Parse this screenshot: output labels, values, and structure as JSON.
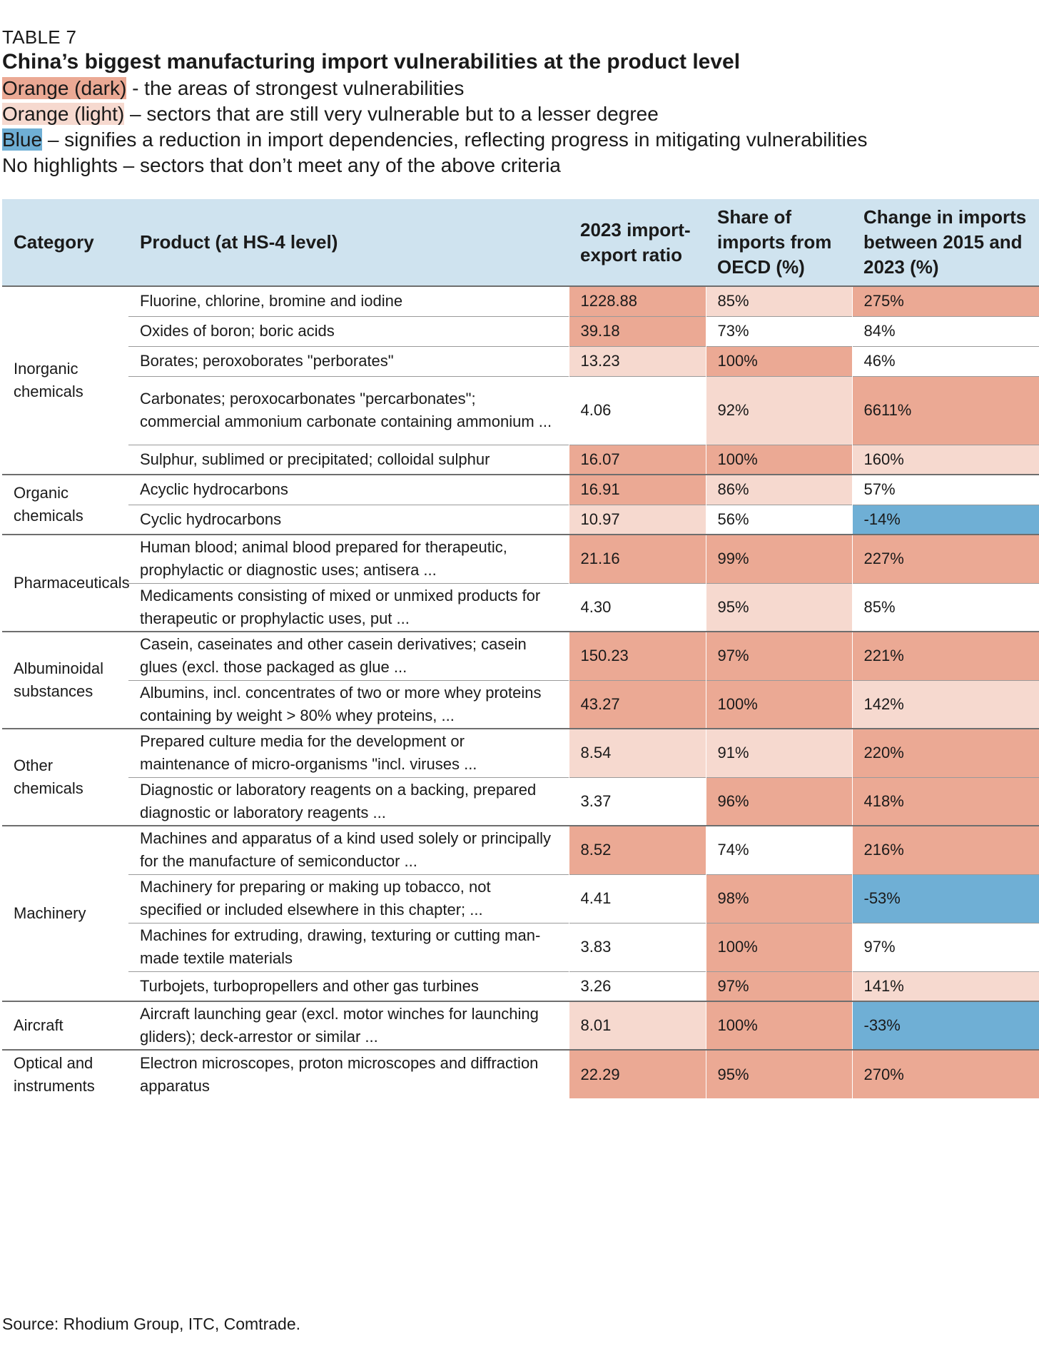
{
  "header": {
    "table_tag": "TABLE 7",
    "title": "China’s biggest manufacturing import vulnerabilities at the product level",
    "legend": [
      {
        "key": "Orange (dark)",
        "text": " - the areas of strongest vulnerabilities",
        "color": "#eba994"
      },
      {
        "key": "Orange (light)",
        "text": " – sectors that are still very vulnerable but to a lesser degree",
        "color": "#f6d9cf"
      },
      {
        "key": "Blue",
        "text": " – signifies a reduction in import dependencies, reflecting progress in mitigating vulnerabilities",
        "color": "#6fafd5"
      },
      {
        "key": "",
        "text": "No highlights – sectors that don’t meet any of the above criteria",
        "color": "#ffffff"
      }
    ]
  },
  "colors": {
    "dark": "#eba994",
    "light": "#f6d9cf",
    "blue": "#6fafd5",
    "header_bg": "#cfe3ef"
  },
  "table": {
    "columns": {
      "category": "Category",
      "product": "Product (at HS-4 level)",
      "ratio": "2023 import-export ratio",
      "share": "Share of imports from OECD (%)",
      "change": "Change in imports between 2015 and 2023 (%)"
    },
    "groups": [
      {
        "category": "Inorganic chemicals",
        "rows": [
          {
            "product": "Fluorine, chlorine, bromine and iodine",
            "ratio": "1228.88",
            "share": "85%",
            "change": "275%",
            "ratio_hl": "dark",
            "share_hl": "light",
            "change_hl": "dark"
          },
          {
            "product": "Oxides of boron; boric acids",
            "ratio": "39.18",
            "share": "73%",
            "change": "84%",
            "ratio_hl": "dark",
            "share_hl": "none",
            "change_hl": "none"
          },
          {
            "product": "Borates; peroxoborates \"perborates\"",
            "ratio": "13.23",
            "share": "100%",
            "change": "46%",
            "ratio_hl": "light",
            "share_hl": "dark",
            "change_hl": "none"
          },
          {
            "product": "Carbonates; peroxocarbonates \"percarbonates\"; commercial ammonium carbonate containing ammonium ...",
            "ratio": "4.06",
            "share": "92%",
            "change": "6611%",
            "ratio_hl": "none",
            "share_hl": "light",
            "change_hl": "dark"
          },
          {
            "product": "Sulphur, sublimed or precipitated; colloidal sulphur",
            "ratio": "16.07",
            "share": "100%",
            "change": "160%",
            "ratio_hl": "dark",
            "share_hl": "dark",
            "change_hl": "light"
          }
        ]
      },
      {
        "category": "Organic chemicals",
        "rows": [
          {
            "product": "Acyclic hydrocarbons",
            "ratio": "16.91",
            "share": "86%",
            "change": "57%",
            "ratio_hl": "dark",
            "share_hl": "light",
            "change_hl": "none"
          },
          {
            "product": "Cyclic hydrocarbons",
            "ratio": "10.97",
            "share": "56%",
            "change": "-14%",
            "ratio_hl": "light",
            "share_hl": "none",
            "change_hl": "blue"
          }
        ]
      },
      {
        "category": "Pharmaceuticals",
        "rows": [
          {
            "product": "Human blood; animal blood prepared for therapeutic, prophylactic or diagnostic uses; antisera ...",
            "ratio": "21.16",
            "share": "99%",
            "change": "227%",
            "ratio_hl": "dark",
            "share_hl": "dark",
            "change_hl": "dark"
          },
          {
            "product": "Medicaments consisting of mixed or unmixed products for therapeutic or prophylactic uses, put ...",
            "ratio": "4.30",
            "share": "95%",
            "change": "85%",
            "ratio_hl": "none",
            "share_hl": "light",
            "change_hl": "none"
          }
        ]
      },
      {
        "category": "Albuminoidal substances",
        "rows": [
          {
            "product": "Casein, caseinates and other casein derivatives; casein glues (excl. those packaged as glue ...",
            "ratio": "150.23",
            "share": "97%",
            "change": "221%",
            "ratio_hl": "dark",
            "share_hl": "dark",
            "change_hl": "dark"
          },
          {
            "product": "Albumins, incl. concentrates of two or more whey proteins containing by weight > 80% whey proteins, ...",
            "ratio": "43.27",
            "share": "100%",
            "change": "142%",
            "ratio_hl": "dark",
            "share_hl": "dark",
            "change_hl": "light"
          }
        ]
      },
      {
        "category": "Other chemicals",
        "rows": [
          {
            "product": "Prepared culture media for the development or maintenance of micro-organisms \"incl. viruses ...",
            "ratio": "8.54",
            "share": "91%",
            "change": "220%",
            "ratio_hl": "light",
            "share_hl": "light",
            "change_hl": "dark"
          },
          {
            "product": "Diagnostic or laboratory reagents on a backing, prepared diagnostic or laboratory reagents ...",
            "ratio": "3.37",
            "share": "96%",
            "change": "418%",
            "ratio_hl": "none",
            "share_hl": "dark",
            "change_hl": "dark"
          }
        ]
      },
      {
        "category": "Machinery",
        "rows": [
          {
            "product": "Machines and apparatus of a kind used solely or principally for the manufacture of semiconductor ...",
            "ratio": "8.52",
            "share": "74%",
            "change": "216%",
            "ratio_hl": "dark",
            "share_hl": "none",
            "change_hl": "dark"
          },
          {
            "product": "Machinery for preparing or making up tobacco, not specified or included elsewhere in this chapter; ...",
            "ratio": "4.41",
            "share": "98%",
            "change": "-53%",
            "ratio_hl": "none",
            "share_hl": "dark",
            "change_hl": "blue"
          },
          {
            "product": "Machines for extruding, drawing, texturing or cutting man-made textile materials",
            "ratio": "3.83",
            "share": "100%",
            "change": "97%",
            "ratio_hl": "none",
            "share_hl": "dark",
            "change_hl": "none"
          },
          {
            "product": "Turbojets, turbopropellers and other gas turbines",
            "ratio": "3.26",
            "share": "97%",
            "change": "141%",
            "ratio_hl": "none",
            "share_hl": "dark",
            "change_hl": "light"
          }
        ]
      },
      {
        "category": "Aircraft",
        "rows": [
          {
            "product": "Aircraft launching gear (excl. motor winches for launching gliders); deck-arrestor or similar ...",
            "ratio": "8.01",
            "share": "100%",
            "change": "-33%",
            "ratio_hl": "light",
            "share_hl": "dark",
            "change_hl": "blue"
          }
        ]
      },
      {
        "category": "Optical and instruments",
        "rows": [
          {
            "product": "Electron microscopes, proton microscopes and diffraction apparatus",
            "ratio": "22.29",
            "share": "95%",
            "change": "270%",
            "ratio_hl": "dark",
            "share_hl": "dark",
            "change_hl": "dark"
          }
        ]
      }
    ]
  },
  "source": "Source: Rhodium Group, ITC, Comtrade."
}
